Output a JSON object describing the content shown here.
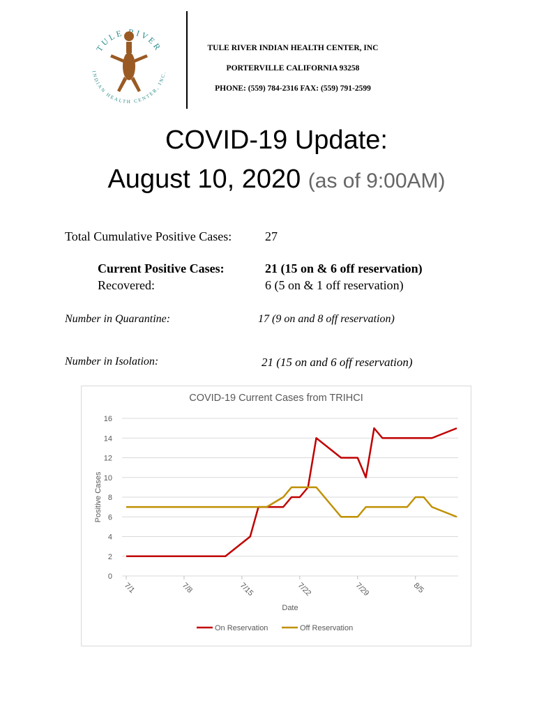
{
  "logo": {
    "top": "TULE RIVER",
    "bottom": "INDIAN HEALTH CENTER, INC."
  },
  "header": {
    "org": "TULE RIVER INDIAN HEALTH CENTER, INC",
    "address": "PORTERVILLE CALIFORNIA 93258",
    "phone": "PHONE: (559) 784-2316 FAX: (559) 791-2599"
  },
  "title": {
    "line1": "COVID-19 Update:",
    "line2": "August 10, 2020",
    "note": "(as of 9:00AM)"
  },
  "stats": {
    "total": {
      "label": "Total Cumulative Positive Cases:",
      "value": "27"
    },
    "current": {
      "label": "Current Positive Cases:",
      "value": "21 (15 on & 6 off reservation)"
    },
    "recovered": {
      "label": "Recovered:",
      "value": "6 (5 on & 1 off reservation)"
    },
    "quarantine": {
      "label": "Number in Quarantine:",
      "value": "17 (9 on and 8 off reservation)"
    },
    "isolation": {
      "label": "Number in Isolation:",
      "value": "21 (15 on and 6 off reservation)"
    }
  },
  "chart_data": {
    "type": "line",
    "title": "COVID-19 Current Cases from TRIHCI",
    "x_label": "Date",
    "y_label": "Positive Cases",
    "x": [
      "7/1",
      "7/13",
      "7/16",
      "7/17",
      "7/18",
      "7/20",
      "7/21",
      "7/22",
      "7/23",
      "7/24",
      "7/27",
      "7/29",
      "7/30",
      "7/31",
      "8/1",
      "8/4",
      "8/5",
      "8/6",
      "8/7",
      "8/10"
    ],
    "xlim": [
      "7/1",
      "8/10"
    ],
    "xticks": [
      "7/1",
      "7/8",
      "7/15",
      "7/22",
      "7/29",
      "8/5"
    ],
    "ylim": [
      0,
      16
    ],
    "yticks": [
      0,
      2,
      4,
      6,
      8,
      10,
      12,
      14,
      16
    ],
    "grid": true,
    "legend": "bottom",
    "series": [
      {
        "name": "On Reservation",
        "color": "#c00000",
        "values": [
          2,
          2,
          4,
          7,
          7,
          7,
          8,
          8,
          9,
          14,
          12,
          12,
          10,
          15,
          14,
          14,
          14,
          14,
          14,
          15
        ]
      },
      {
        "name": "Off Reservation",
        "color": "#bf9000",
        "values": [
          7,
          7,
          7,
          7,
          7,
          8,
          9,
          9,
          9,
          9,
          6,
          6,
          7,
          7,
          7,
          7,
          8,
          8,
          7,
          6
        ]
      }
    ]
  }
}
